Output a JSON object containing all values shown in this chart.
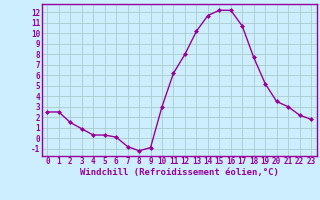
{
  "x": [
    0,
    1,
    2,
    3,
    4,
    5,
    6,
    7,
    8,
    9,
    10,
    11,
    12,
    13,
    14,
    15,
    16,
    17,
    18,
    19,
    20,
    21,
    22,
    23
  ],
  "y": [
    2.5,
    2.5,
    1.5,
    0.9,
    0.3,
    0.3,
    0.1,
    -0.8,
    -1.2,
    -0.9,
    3.0,
    6.2,
    8.0,
    10.2,
    11.7,
    12.2,
    12.2,
    10.7,
    7.7,
    5.2,
    3.5,
    3.0,
    2.2,
    1.8
  ],
  "line_color": "#990099",
  "marker": "D",
  "marker_size": 2.0,
  "bg_color": "#cceeff",
  "grid_color": "#aacccc",
  "xlabel": "Windchill (Refroidissement éolien,°C)",
  "xlabel_color": "#990099",
  "tick_color": "#990099",
  "axis_color": "#990099",
  "ylabel_ticks": [
    -1,
    0,
    1,
    2,
    3,
    4,
    5,
    6,
    7,
    8,
    9,
    10,
    11,
    12
  ],
  "xlim": [
    -0.5,
    23.5
  ],
  "ylim": [
    -1.7,
    12.8
  ],
  "font_size_ticks": 5.5,
  "font_size_xlabel": 6.5
}
